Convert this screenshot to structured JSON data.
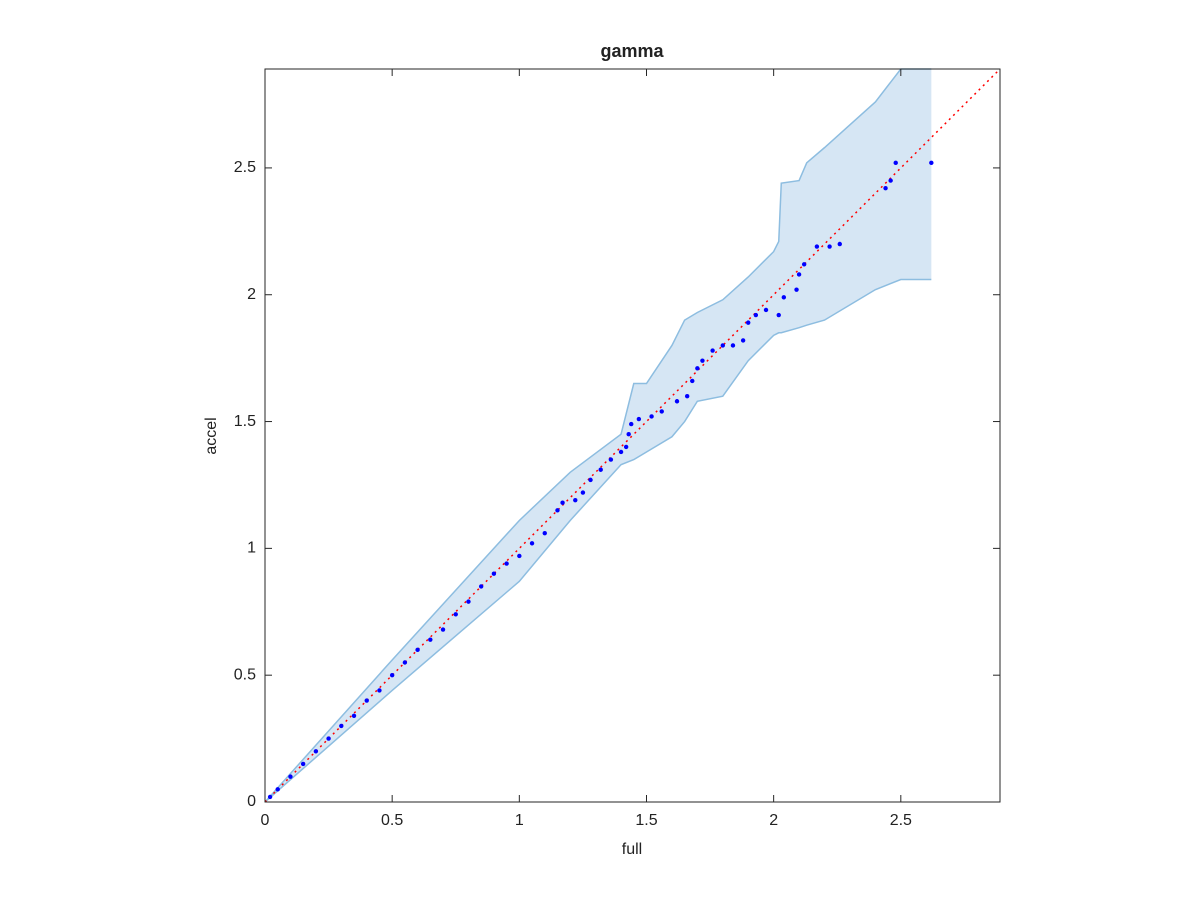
{
  "chart_data": {
    "type": "qq-band",
    "title": "gamma",
    "x_label": "full",
    "y_label": "accel",
    "xlim": [
      0,
      2.89
    ],
    "ylim": [
      0,
      2.89
    ],
    "xticks": [
      0,
      0.5,
      1,
      1.5,
      2,
      2.5
    ],
    "yticks": [
      0,
      0.5,
      1,
      1.5,
      2,
      2.5
    ],
    "band": {
      "color": "#d6e6f4",
      "edge_color": "#8dbde0",
      "x": [
        0,
        0.5,
        1,
        1.2,
        1.4,
        1.45,
        1.5,
        1.6,
        1.65,
        1.7,
        1.8,
        1.9,
        2.0,
        2.02,
        2.03,
        2.1,
        2.13,
        2.2,
        2.4,
        2.5,
        2.62
      ],
      "lower": [
        0,
        0.44,
        0.87,
        1.11,
        1.33,
        1.35,
        1.38,
        1.44,
        1.5,
        1.58,
        1.6,
        1.74,
        1.84,
        1.85,
        1.85,
        1.87,
        1.88,
        1.9,
        2.02,
        2.06,
        2.06
      ],
      "upper": [
        0,
        0.56,
        1.11,
        1.3,
        1.45,
        1.65,
        1.65,
        1.8,
        1.9,
        1.93,
        1.98,
        2.07,
        2.17,
        2.21,
        2.44,
        2.45,
        2.52,
        2.58,
        2.76,
        2.89,
        2.89
      ]
    },
    "reference": {
      "color": "#ff0000",
      "x": [
        0,
        2.89
      ],
      "y": [
        0,
        2.89
      ]
    },
    "points": {
      "color": "#0000ff",
      "x": [
        0.02,
        0.05,
        0.1,
        0.15,
        0.2,
        0.25,
        0.3,
        0.35,
        0.4,
        0.45,
        0.5,
        0.55,
        0.6,
        0.65,
        0.7,
        0.75,
        0.8,
        0.85,
        0.9,
        0.95,
        1.0,
        1.05,
        1.1,
        1.15,
        1.17,
        1.22,
        1.25,
        1.28,
        1.32,
        1.36,
        1.4,
        1.42,
        1.43,
        1.44,
        1.47,
        1.52,
        1.56,
        1.62,
        1.66,
        1.68,
        1.7,
        1.72,
        1.76,
        1.8,
        1.84,
        1.88,
        1.9,
        1.93,
        2.02,
        1.97,
        2.04,
        2.09,
        2.1,
        2.12,
        2.17,
        2.22,
        2.26,
        2.44,
        2.46,
        2.48,
        2.62
      ],
      "y": [
        0.02,
        0.05,
        0.1,
        0.15,
        0.2,
        0.25,
        0.3,
        0.34,
        0.4,
        0.44,
        0.5,
        0.55,
        0.6,
        0.64,
        0.68,
        0.74,
        0.79,
        0.85,
        0.9,
        0.94,
        0.97,
        1.02,
        1.06,
        1.15,
        1.18,
        1.19,
        1.22,
        1.27,
        1.31,
        1.35,
        1.38,
        1.4,
        1.45,
        1.49,
        1.51,
        1.52,
        1.54,
        1.58,
        1.6,
        1.66,
        1.71,
        1.74,
        1.78,
        1.8,
        1.8,
        1.82,
        1.89,
        1.92,
        1.92,
        1.94,
        1.99,
        2.02,
        2.08,
        2.12,
        2.19,
        2.19,
        2.2,
        2.42,
        2.45,
        2.52,
        2.52
      ]
    }
  }
}
